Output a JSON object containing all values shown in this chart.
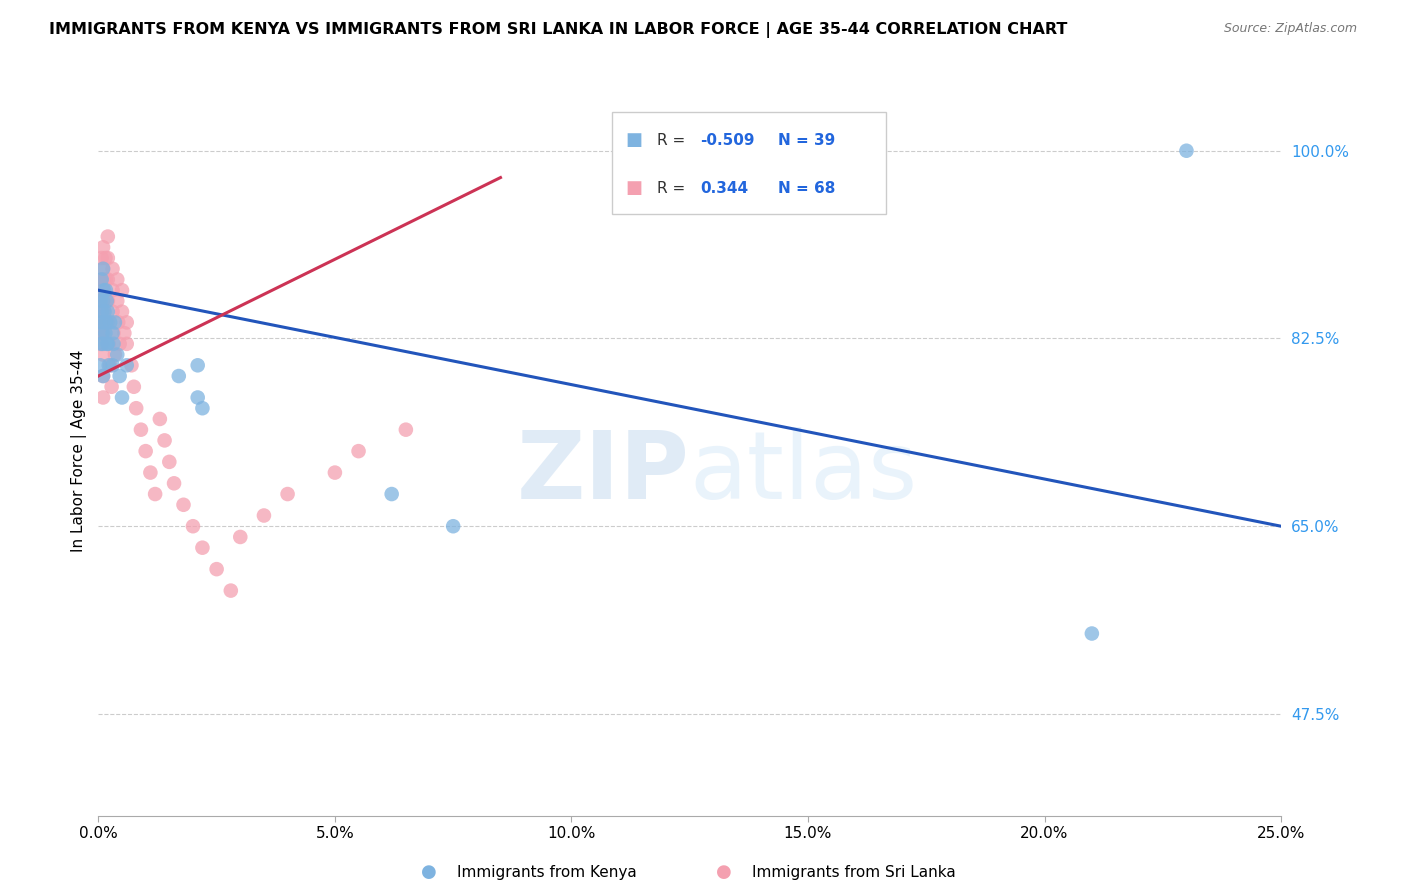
{
  "title": "IMMIGRANTS FROM KENYA VS IMMIGRANTS FROM SRI LANKA IN LABOR FORCE | AGE 35-44 CORRELATION CHART",
  "source": "Source: ZipAtlas.com",
  "ylabel": "In Labor Force | Age 35-44",
  "xlim": [
    0.0,
    0.25
  ],
  "ylim": [
    0.38,
    1.06
  ],
  "xticks": [
    0.0,
    0.05,
    0.1,
    0.15,
    0.2,
    0.25
  ],
  "xticklabels": [
    "0.0%",
    "5.0%",
    "10.0%",
    "15.0%",
    "20.0%",
    "25.0%"
  ],
  "yticks": [
    0.475,
    0.65,
    0.825,
    1.0
  ],
  "yticklabels": [
    "47.5%",
    "65.0%",
    "82.5%",
    "100.0%"
  ],
  "kenya_R": -0.509,
  "kenya_N": 39,
  "srilanka_R": 0.344,
  "srilanka_N": 68,
  "kenya_color": "#7EB3E0",
  "srilanka_color": "#F4A0B0",
  "kenya_line_color": "#2255BB",
  "srilanka_line_color": "#CC3355",
  "kenya_line": [
    [
      0.0,
      0.25
    ],
    [
      0.87,
      0.65
    ]
  ],
  "srilanka_line": [
    [
      0.0,
      0.085
    ],
    [
      0.79,
      0.975
    ]
  ],
  "kenya_x": [
    0.0003,
    0.0004,
    0.0005,
    0.0006,
    0.0007,
    0.0008,
    0.0009,
    0.001,
    0.001,
    0.001,
    0.001,
    0.001,
    0.0012,
    0.0013,
    0.0015,
    0.0016,
    0.0017,
    0.0018,
    0.0019,
    0.002,
    0.002,
    0.0022,
    0.0025,
    0.003,
    0.003,
    0.0032,
    0.0035,
    0.004,
    0.0045,
    0.005,
    0.006,
    0.017,
    0.021,
    0.021,
    0.022,
    0.062,
    0.075,
    0.21,
    0.23
  ],
  "kenya_y": [
    0.84,
    0.8,
    0.86,
    0.82,
    0.88,
    0.85,
    0.83,
    0.89,
    0.86,
    0.84,
    0.82,
    0.79,
    0.87,
    0.85,
    0.83,
    0.87,
    0.84,
    0.86,
    0.82,
    0.85,
    0.82,
    0.8,
    0.84,
    0.83,
    0.8,
    0.82,
    0.84,
    0.81,
    0.79,
    0.77,
    0.8,
    0.79,
    0.8,
    0.77,
    0.76,
    0.68,
    0.65,
    0.55,
    1.0
  ],
  "srilanka_x": [
    0.0002,
    0.0003,
    0.0004,
    0.0005,
    0.0006,
    0.0006,
    0.0007,
    0.0008,
    0.0009,
    0.001,
    0.001,
    0.001,
    0.001,
    0.001,
    0.001,
    0.001,
    0.001,
    0.0012,
    0.0013,
    0.0014,
    0.0015,
    0.0016,
    0.0017,
    0.0018,
    0.002,
    0.002,
    0.002,
    0.002,
    0.002,
    0.0022,
    0.0025,
    0.0028,
    0.003,
    0.003,
    0.003,
    0.0032,
    0.0035,
    0.004,
    0.004,
    0.0042,
    0.0045,
    0.005,
    0.005,
    0.0055,
    0.006,
    0.006,
    0.007,
    0.0075,
    0.008,
    0.009,
    0.01,
    0.011,
    0.012,
    0.013,
    0.014,
    0.015,
    0.016,
    0.018,
    0.02,
    0.022,
    0.025,
    0.028,
    0.03,
    0.035,
    0.04,
    0.05,
    0.055,
    0.065
  ],
  "srilanka_y": [
    0.83,
    0.87,
    0.84,
    0.86,
    0.88,
    0.82,
    0.9,
    0.85,
    0.83,
    0.91,
    0.89,
    0.87,
    0.85,
    0.83,
    0.81,
    0.79,
    0.77,
    0.88,
    0.86,
    0.84,
    0.9,
    0.88,
    0.86,
    0.84,
    0.92,
    0.9,
    0.88,
    0.86,
    0.84,
    0.82,
    0.8,
    0.78,
    0.89,
    0.87,
    0.85,
    0.83,
    0.81,
    0.88,
    0.86,
    0.84,
    0.82,
    0.87,
    0.85,
    0.83,
    0.84,
    0.82,
    0.8,
    0.78,
    0.76,
    0.74,
    0.72,
    0.7,
    0.68,
    0.75,
    0.73,
    0.71,
    0.69,
    0.67,
    0.65,
    0.63,
    0.61,
    0.59,
    0.64,
    0.66,
    0.68,
    0.7,
    0.72,
    0.74
  ],
  "watermark_zip": "ZIP",
  "watermark_atlas": "atlas",
  "background_color": "#ffffff",
  "grid_color": "#cccccc"
}
